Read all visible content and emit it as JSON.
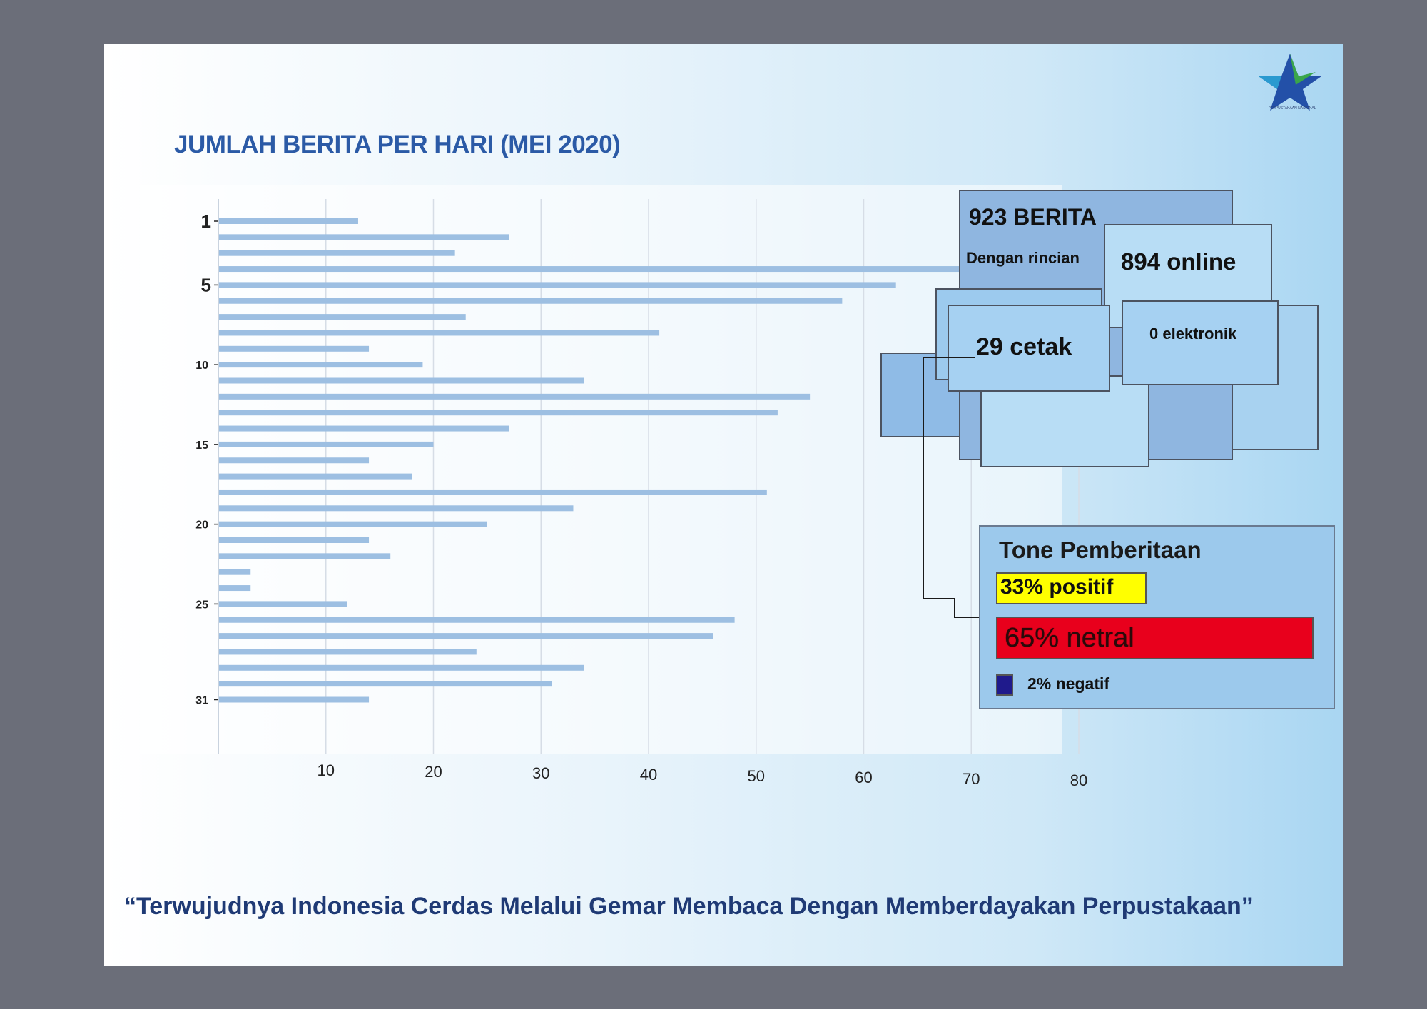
{
  "header": {
    "title": "JUMLAH BERITA PER HARI (MEI 2020)"
  },
  "logo": {
    "icon": "star-logo-icon",
    "caption": "PERPUSTAKAAN NASIONAL"
  },
  "chart_data": {
    "type": "bar",
    "orientation": "horizontal",
    "title": "JUMLAH BERITA PER HARI (MEI 2020)",
    "categories": [
      "1",
      "2",
      "3",
      "4",
      "5",
      "6",
      "7",
      "8",
      "9",
      "10",
      "11",
      "12",
      "13",
      "14",
      "15",
      "16",
      "17",
      "18",
      "19",
      "20",
      "21",
      "22",
      "23",
      "24",
      "25",
      "26",
      "27",
      "28",
      "29",
      "30",
      "31"
    ],
    "y_tick_labels": [
      "1",
      "5",
      "10",
      "15",
      "20",
      "25",
      "31"
    ],
    "values": [
      13,
      27,
      22,
      69,
      63,
      58,
      23,
      41,
      14,
      19,
      34,
      55,
      52,
      27,
      20,
      14,
      18,
      51,
      33,
      25,
      14,
      16,
      3,
      3,
      12,
      48,
      46,
      24,
      34,
      31,
      14
    ],
    "x_ticks": [
      10,
      20,
      30,
      40,
      50,
      60,
      70,
      80
    ],
    "xlim": [
      0,
      80
    ],
    "grid": true,
    "bar_color": "#9dbfe2"
  },
  "summary": {
    "total": "923 BERITA",
    "subtitle": "Dengan rincian",
    "online": "894 online",
    "cetak": "29 cetak",
    "elektronik": "0 elektronik"
  },
  "tone": {
    "title": "Tone Pemberitaan",
    "positif": "33% positif",
    "netral": "65% netral",
    "negatif": "2% negatif",
    "colors": {
      "positif": "#ffff00",
      "netral": "#e8001c",
      "negatif": "#1f1a8c"
    }
  },
  "footer": {
    "quote": "“Terwujudnya Indonesia Cerdas Melalui Gemar Membaca Dengan Memberdayakan Perpustakaan”"
  }
}
